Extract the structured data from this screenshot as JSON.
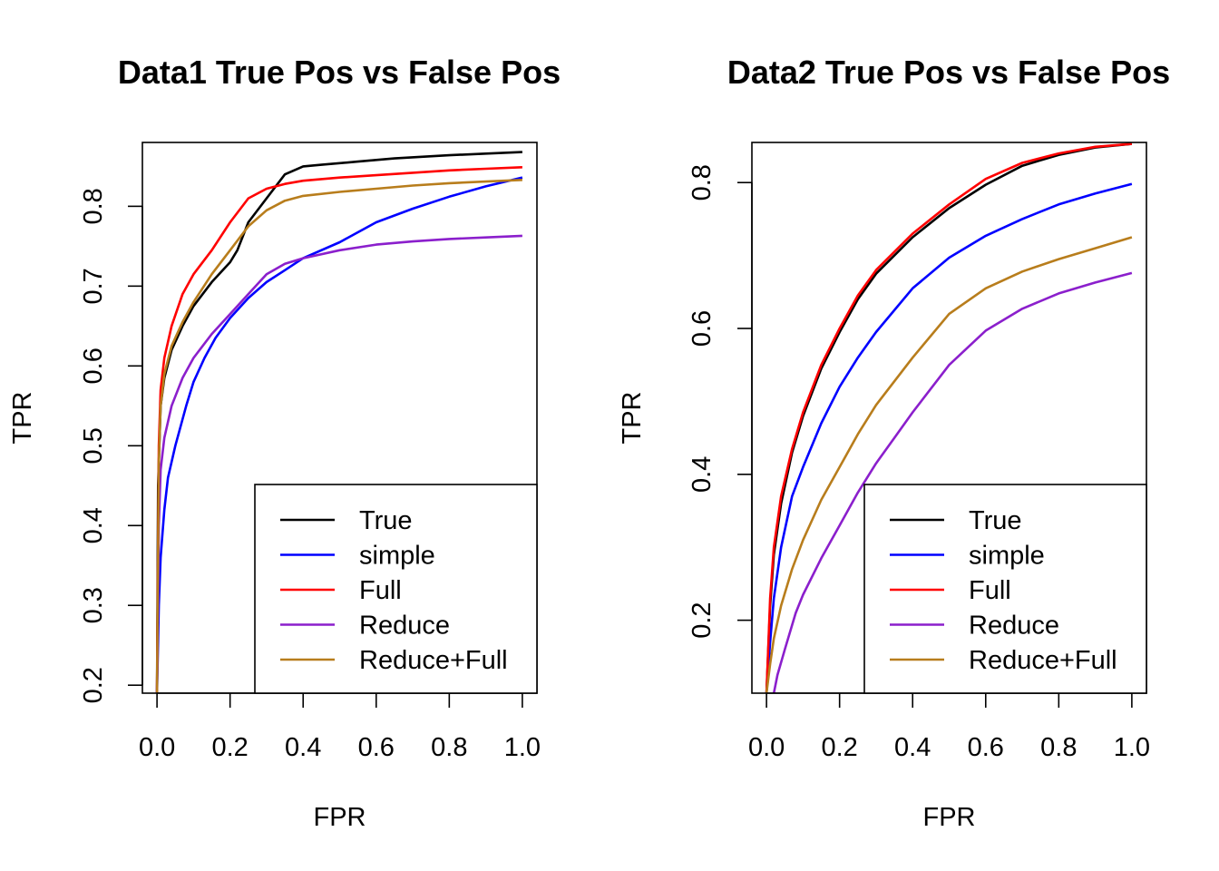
{
  "chart_data": [
    {
      "type": "line",
      "title": "Data1 True Pos vs False Pos",
      "xlabel": "FPR",
      "ylabel": "TPR",
      "xlim": [
        0,
        1
      ],
      "ylim": [
        0.19,
        0.88
      ],
      "xticks": [
        "0.0",
        "0.2",
        "0.4",
        "0.6",
        "0.8",
        "1.0"
      ],
      "yticks": [
        "0.2",
        "0.3",
        "0.4",
        "0.5",
        "0.6",
        "0.7",
        "0.8"
      ],
      "legend_position": "bottom-right",
      "series": [
        {
          "name": "True",
          "color": "#000000",
          "x": [
            0,
            0.003,
            0.01,
            0.02,
            0.04,
            0.07,
            0.1,
            0.15,
            0.2,
            0.22,
            0.25,
            0.3,
            0.35,
            0.4,
            0.45,
            0.55,
            0.65,
            0.8,
            0.9,
            1.0
          ],
          "y": [
            0.19,
            0.45,
            0.55,
            0.585,
            0.62,
            0.65,
            0.675,
            0.705,
            0.73,
            0.745,
            0.78,
            0.81,
            0.84,
            0.85,
            0.852,
            0.856,
            0.86,
            0.864,
            0.866,
            0.868
          ]
        },
        {
          "name": "simple",
          "color": "#0000ff",
          "x": [
            0,
            0.005,
            0.01,
            0.02,
            0.03,
            0.05,
            0.08,
            0.1,
            0.13,
            0.16,
            0.2,
            0.25,
            0.3,
            0.35,
            0.4,
            0.5,
            0.6,
            0.7,
            0.8,
            0.9,
            1.0
          ],
          "y": [
            0.19,
            0.3,
            0.36,
            0.42,
            0.46,
            0.5,
            0.55,
            0.58,
            0.61,
            0.635,
            0.66,
            0.685,
            0.705,
            0.72,
            0.735,
            0.755,
            0.78,
            0.797,
            0.812,
            0.825,
            0.836
          ]
        },
        {
          "name": "Full",
          "color": "#ff0000",
          "x": [
            0,
            0.005,
            0.01,
            0.02,
            0.04,
            0.07,
            0.1,
            0.15,
            0.2,
            0.25,
            0.3,
            0.35,
            0.4,
            0.5,
            0.6,
            0.7,
            0.8,
            0.9,
            1.0
          ],
          "y": [
            0.19,
            0.5,
            0.57,
            0.61,
            0.65,
            0.69,
            0.715,
            0.745,
            0.78,
            0.81,
            0.822,
            0.828,
            0.832,
            0.836,
            0.839,
            0.842,
            0.845,
            0.847,
            0.849
          ]
        },
        {
          "name": "Reduce",
          "color": "#8b1fcc",
          "x": [
            0,
            0.005,
            0.01,
            0.02,
            0.04,
            0.07,
            0.1,
            0.15,
            0.2,
            0.25,
            0.3,
            0.35,
            0.4,
            0.5,
            0.6,
            0.7,
            0.8,
            0.9,
            1.0
          ],
          "y": [
            0.19,
            0.4,
            0.47,
            0.51,
            0.55,
            0.585,
            0.61,
            0.64,
            0.665,
            0.69,
            0.715,
            0.728,
            0.735,
            0.745,
            0.752,
            0.756,
            0.759,
            0.761,
            0.763
          ]
        },
        {
          "name": "Reduce+Full",
          "color": "#b87d1c",
          "x": [
            0,
            0.005,
            0.01,
            0.02,
            0.04,
            0.07,
            0.1,
            0.15,
            0.2,
            0.25,
            0.3,
            0.35,
            0.4,
            0.5,
            0.6,
            0.7,
            0.8,
            0.9,
            1.0
          ],
          "y": [
            0.19,
            0.48,
            0.55,
            0.59,
            0.625,
            0.655,
            0.68,
            0.715,
            0.745,
            0.775,
            0.795,
            0.807,
            0.813,
            0.818,
            0.822,
            0.826,
            0.829,
            0.831,
            0.833
          ]
        }
      ]
    },
    {
      "type": "line",
      "title": "Data2 True Pos vs False Pos",
      "xlabel": "FPR",
      "ylabel": "TPR",
      "xlim": [
        0,
        1
      ],
      "ylim": [
        0.1,
        0.855
      ],
      "xticks": [
        "0.0",
        "0.2",
        "0.4",
        "0.6",
        "0.8",
        "1.0"
      ],
      "yticks": [
        "0.2",
        "0.4",
        "0.6",
        "0.8"
      ],
      "legend_position": "bottom-right",
      "series": [
        {
          "name": "True",
          "color": "#000000",
          "x": [
            0,
            0.01,
            0.02,
            0.04,
            0.07,
            0.1,
            0.15,
            0.2,
            0.25,
            0.3,
            0.4,
            0.5,
            0.6,
            0.7,
            0.8,
            0.9,
            1.0
          ],
          "y": [
            0.1,
            0.22,
            0.29,
            0.36,
            0.43,
            0.48,
            0.545,
            0.595,
            0.64,
            0.675,
            0.725,
            0.765,
            0.797,
            0.823,
            0.838,
            0.848,
            0.853
          ]
        },
        {
          "name": "simple",
          "color": "#0000ff",
          "x": [
            0,
            0.01,
            0.02,
            0.04,
            0.07,
            0.1,
            0.15,
            0.2,
            0.25,
            0.3,
            0.4,
            0.5,
            0.6,
            0.7,
            0.8,
            0.9,
            1.0
          ],
          "y": [
            0.1,
            0.17,
            0.23,
            0.3,
            0.37,
            0.41,
            0.47,
            0.52,
            0.56,
            0.595,
            0.655,
            0.697,
            0.727,
            0.75,
            0.77,
            0.785,
            0.798
          ]
        },
        {
          "name": "Full",
          "color": "#ff0000",
          "x": [
            0,
            0.01,
            0.02,
            0.04,
            0.07,
            0.1,
            0.15,
            0.2,
            0.25,
            0.3,
            0.4,
            0.5,
            0.6,
            0.7,
            0.8,
            0.9,
            1.0
          ],
          "y": [
            0.1,
            0.23,
            0.3,
            0.37,
            0.435,
            0.485,
            0.55,
            0.6,
            0.645,
            0.68,
            0.73,
            0.77,
            0.805,
            0.827,
            0.84,
            0.849,
            0.853
          ]
        },
        {
          "name": "Reduce",
          "color": "#8b1fcc",
          "x": [
            0.02,
            0.03,
            0.05,
            0.08,
            0.1,
            0.15,
            0.2,
            0.25,
            0.3,
            0.35,
            0.4,
            0.5,
            0.6,
            0.7,
            0.8,
            0.9,
            1.0
          ],
          "y": [
            0.1,
            0.125,
            0.16,
            0.21,
            0.235,
            0.285,
            0.33,
            0.375,
            0.415,
            0.45,
            0.485,
            0.55,
            0.597,
            0.627,
            0.648,
            0.663,
            0.676
          ]
        },
        {
          "name": "Reduce+Full",
          "color": "#b87d1c",
          "x": [
            0,
            0.01,
            0.02,
            0.04,
            0.07,
            0.1,
            0.15,
            0.2,
            0.25,
            0.3,
            0.4,
            0.5,
            0.6,
            0.7,
            0.8,
            0.9,
            1.0
          ],
          "y": [
            0.1,
            0.14,
            0.175,
            0.22,
            0.27,
            0.31,
            0.365,
            0.41,
            0.455,
            0.495,
            0.56,
            0.62,
            0.655,
            0.678,
            0.695,
            0.71,
            0.725
          ]
        }
      ]
    }
  ]
}
